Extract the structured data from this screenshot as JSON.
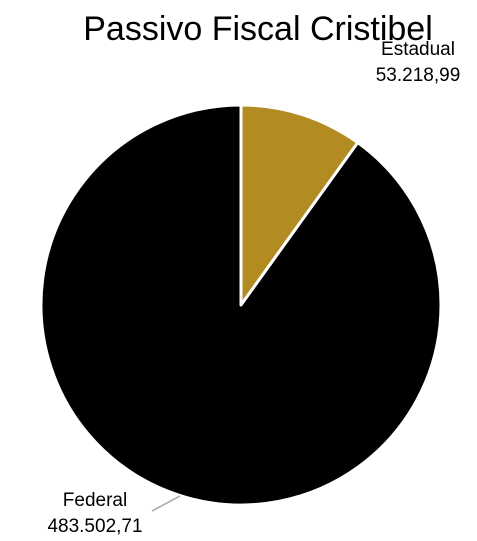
{
  "chart_data": {
    "type": "pie",
    "title": "Passivo Fiscal Cristibel",
    "slices": [
      {
        "label": "Estadual",
        "value": 53218.99,
        "value_label": "53.218,99",
        "color": "#B38B23"
      },
      {
        "label": "Federal",
        "value": 483502.71,
        "value_label": "483.502,71",
        "color": "#000000"
      }
    ],
    "legend": "none",
    "data_labels": "outside",
    "leader_line_color": "#A6A6A6"
  }
}
